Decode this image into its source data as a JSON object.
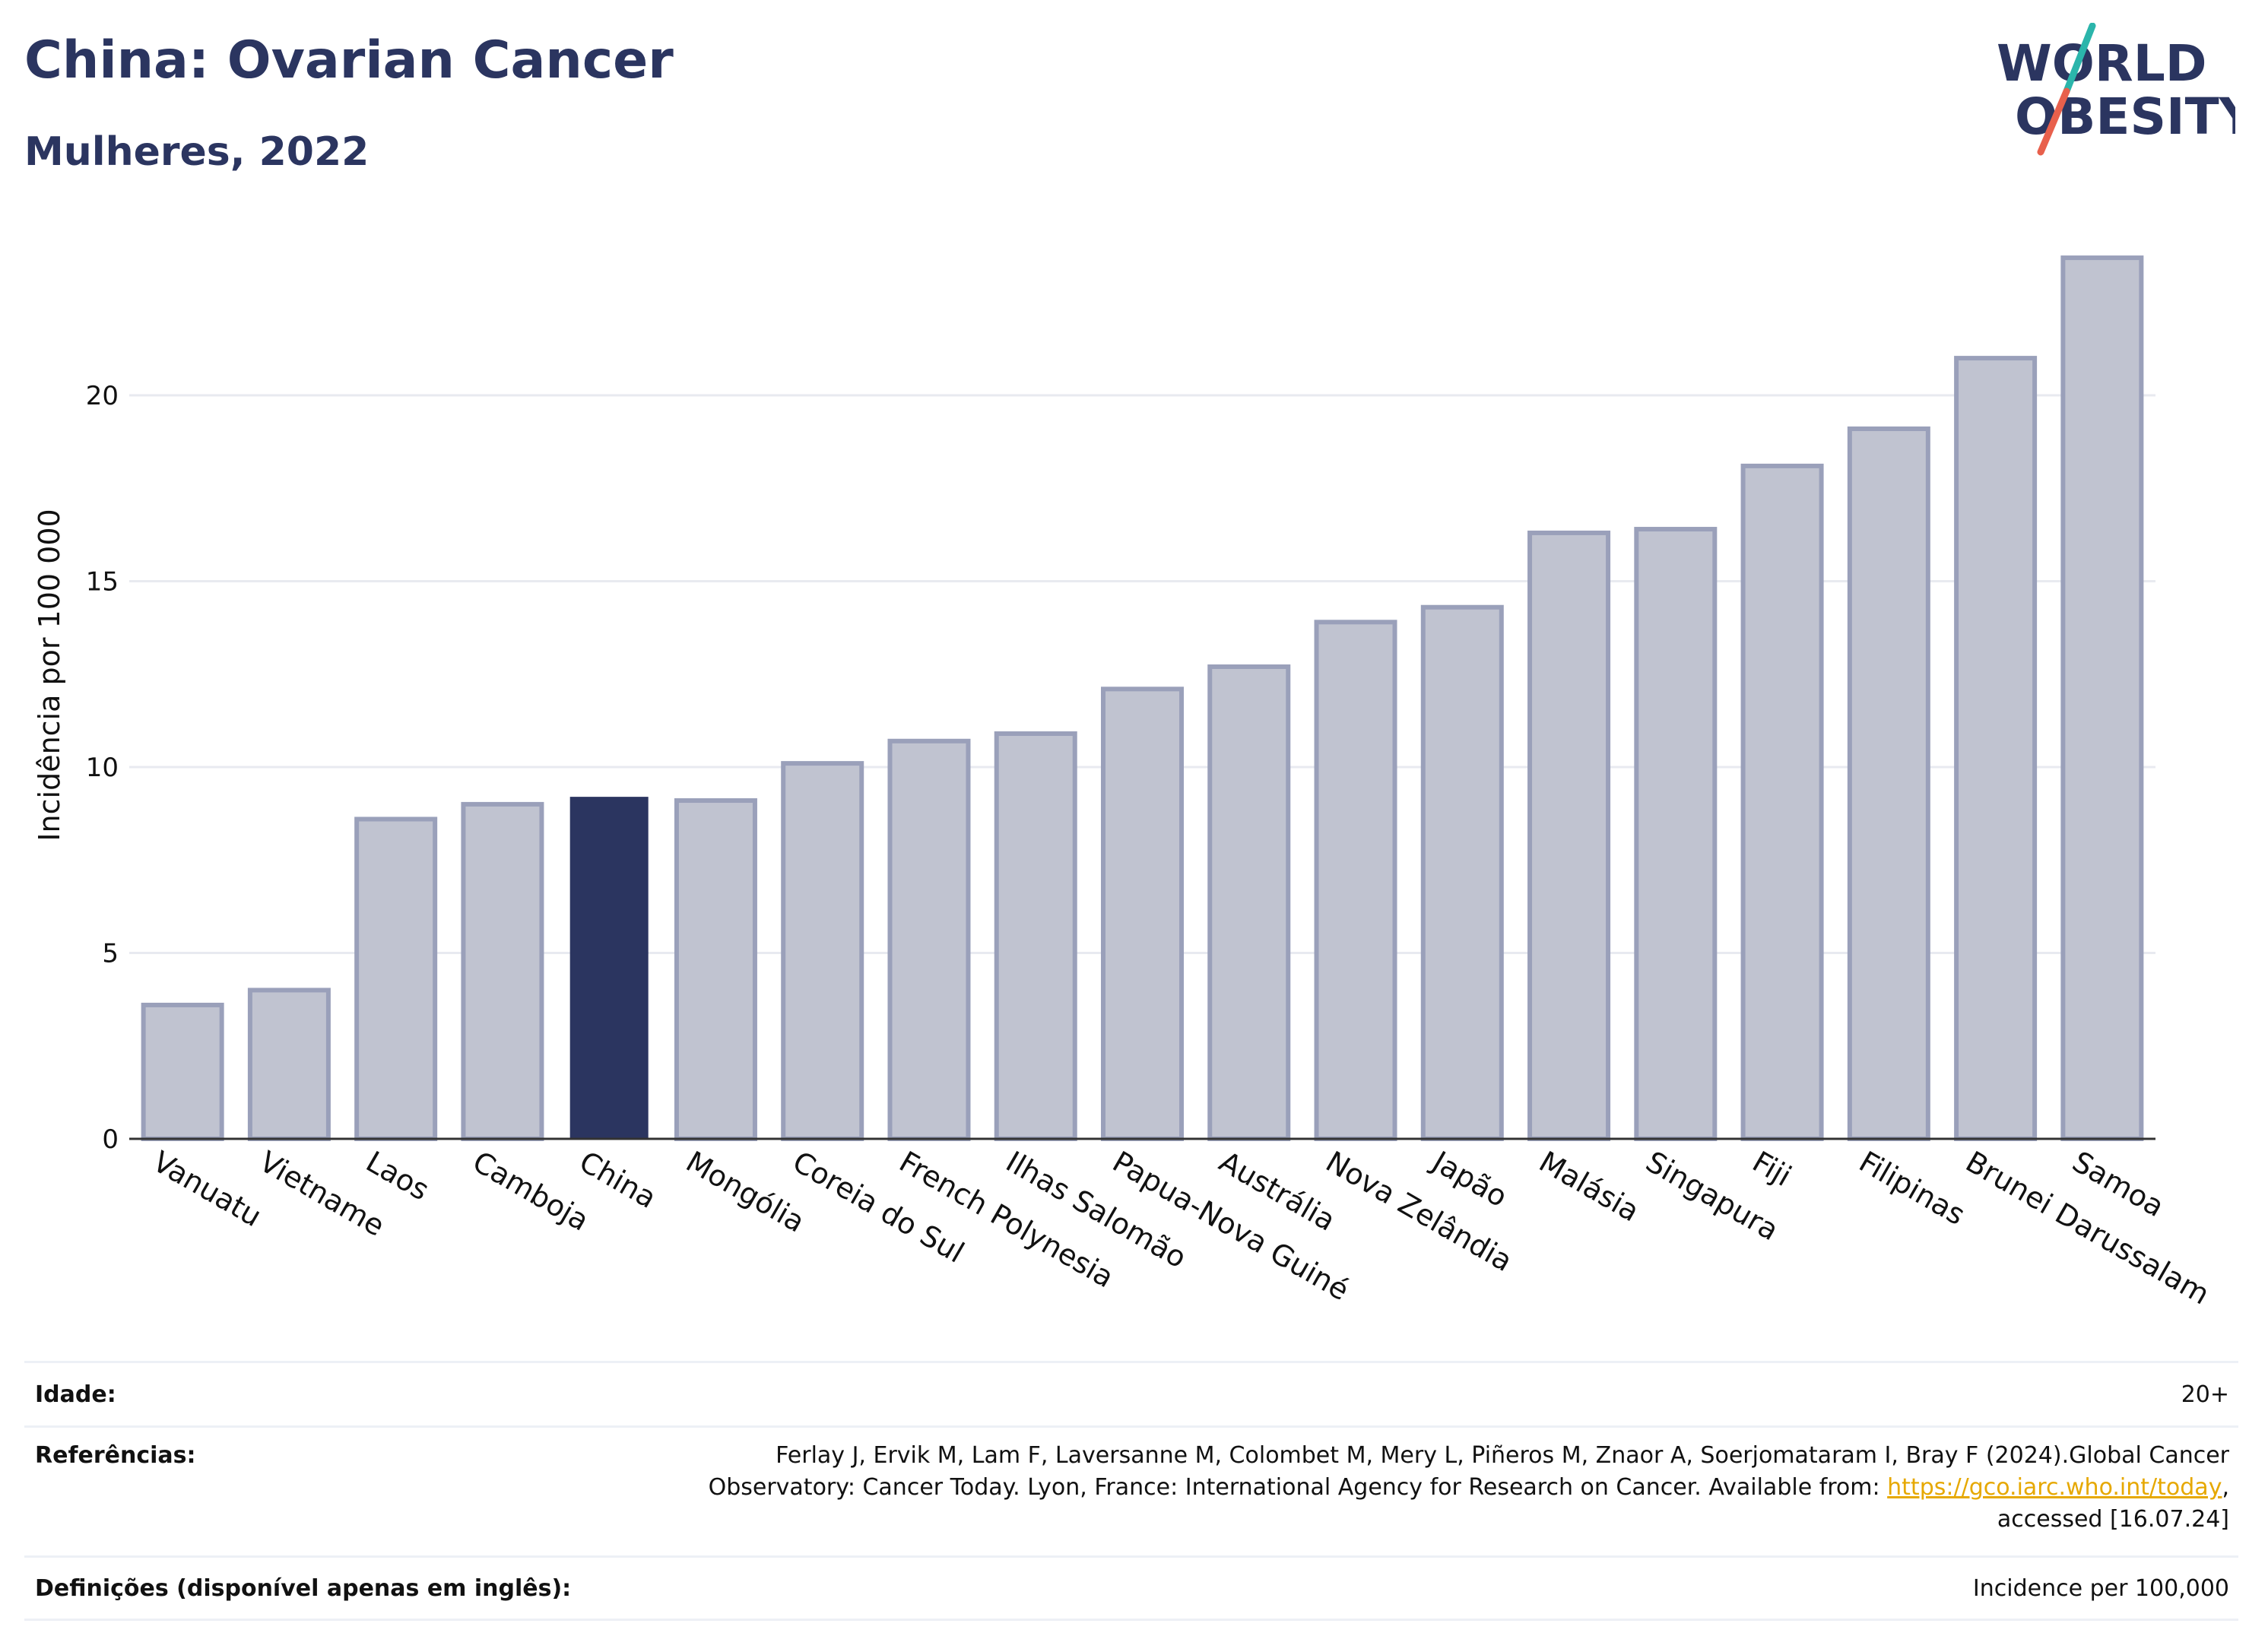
{
  "header": {
    "title": "China: Ovarian Cancer",
    "subtitle": "Mulheres, 2022"
  },
  "logo": {
    "line1": "WORLD",
    "line2": "OBESITY",
    "icon": "world-obesity-logo"
  },
  "chart_data": {
    "type": "bar",
    "title": "China: Ovarian Cancer",
    "subtitle": "Mulheres, 2022",
    "xlabel": "",
    "ylabel": "Incidência por 100 000",
    "ylim": [
      0,
      25
    ],
    "yticks": [
      0,
      5,
      10,
      15,
      20
    ],
    "grid": true,
    "categories": [
      "Vanuatu",
      "Vietname",
      "Laos",
      "Camboja",
      "China",
      "Mongólia",
      "Coreia do Sul",
      "French Polynesia",
      "Ilhas Salomão",
      "Papua-Nova Guiné",
      "Austrália",
      "Nova Zelândia",
      "Japão",
      "Malásia",
      "Singapura",
      "Fiji",
      "Filipinas",
      "Brunei Darussalam",
      "Samoa"
    ],
    "values": [
      3.6,
      4.0,
      8.6,
      9.0,
      9.2,
      9.1,
      10.1,
      10.7,
      10.9,
      12.1,
      12.7,
      13.9,
      14.3,
      16.3,
      16.4,
      18.1,
      19.1,
      21.0,
      23.7
    ],
    "highlight": "China",
    "colors": {
      "bar": "#c0c3d0",
      "bar_border": "#9aa0ba",
      "highlight": "#2b3560",
      "grid": "#e8eaf0",
      "axis": "#333333"
    }
  },
  "footer": {
    "age_label": "Idade:",
    "age_value": "20+",
    "refs_label": "Referências:",
    "refs_line1": "Ferlay J, Ervik M, Lam F, Laversanne M, Colombet M, Mery L, Piñeros M, Znaor A, Soerjomataram I, Bray F (2024).Global Cancer",
    "refs_line2": "Observatory: Cancer Today. Lyon, France: International Agency for Research on Cancer. Available from: ",
    "refs_link": "https://gco.iarc.who.int/today",
    "refs_line2_end": ",",
    "refs_line3": "accessed [16.07.24]",
    "defs_label": "Definições (disponível apenas em inglês):",
    "defs_value": "Incidence per 100,000"
  }
}
